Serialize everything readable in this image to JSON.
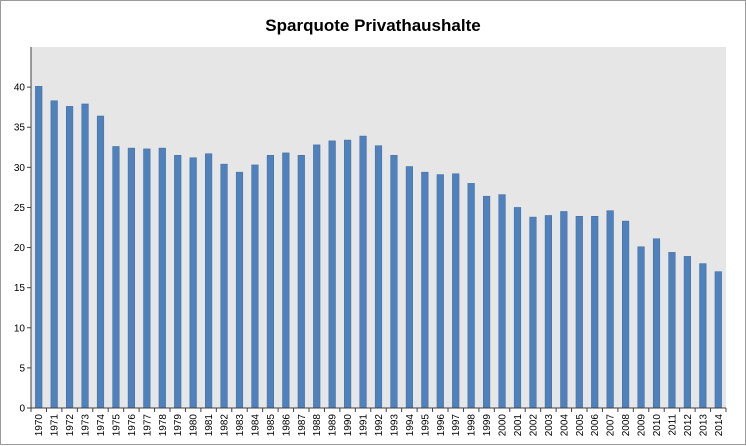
{
  "chart_data": {
    "type": "bar",
    "title": "Sparquote Privathaushalte",
    "xlabel": "",
    "ylabel": "",
    "ylim": [
      0,
      45
    ],
    "yticks": [
      0,
      5,
      10,
      15,
      20,
      25,
      30,
      35,
      40
    ],
    "grid": false,
    "legend": "none",
    "categories": [
      "1970",
      "1971",
      "1972",
      "1973",
      "1974",
      "1975",
      "1976",
      "1977",
      "1978",
      "1979",
      "1980",
      "1981",
      "1982",
      "1983",
      "1984",
      "1985",
      "1986",
      "1987",
      "1988",
      "1989",
      "1990",
      "1991",
      "1992",
      "1993",
      "1994",
      "1995",
      "1996",
      "1997",
      "1998",
      "1999",
      "2000",
      "2001",
      "2002",
      "2003",
      "2004",
      "2005",
      "2006",
      "2007",
      "2008",
      "2009",
      "2010",
      "2011",
      "2012",
      "2013",
      "2014"
    ],
    "values": [
      40.1,
      38.3,
      37.6,
      37.9,
      36.4,
      32.6,
      32.4,
      32.3,
      32.4,
      31.5,
      31.2,
      31.7,
      30.4,
      29.4,
      30.3,
      31.5,
      31.8,
      31.5,
      32.8,
      33.3,
      33.4,
      33.9,
      32.7,
      31.5,
      30.1,
      29.4,
      29.1,
      29.2,
      28.0,
      26.4,
      26.6,
      25.0,
      23.8,
      24.0,
      24.5,
      23.9,
      23.9,
      24.6,
      23.3,
      20.1,
      21.1,
      19.4,
      18.9,
      18.0,
      17.0
    ],
    "colors": {
      "bar": "#4f81bd",
      "bar_edge": "#3e6b9e",
      "plot_background": "#e6e6e6",
      "axis": "#404040"
    }
  }
}
